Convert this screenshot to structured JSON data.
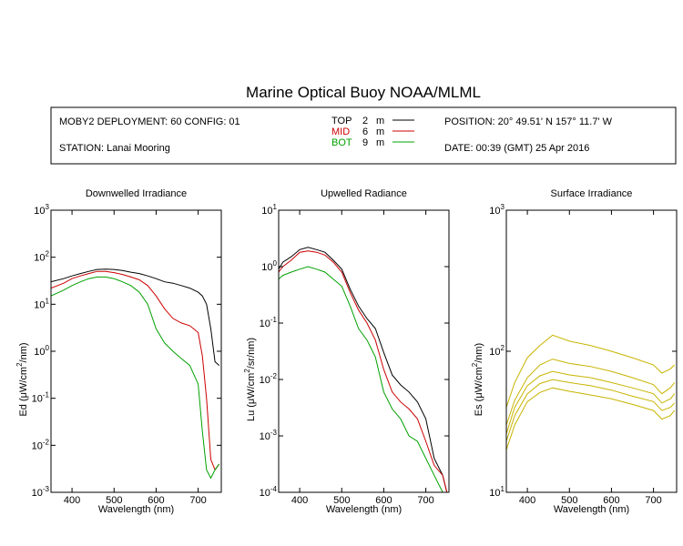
{
  "title": "Marine Optical Buoy NOAA/MLML",
  "info": {
    "deployment": "MOBY2 DEPLOYMENT: 60 CONFIG: 01",
    "station": "STATION: Lanai Mooring",
    "position": "POSITION: 20° 49.51' N   157° 11.7' W",
    "date": "DATE: 00:39 (GMT) 25 Apr 2016"
  },
  "legend": [
    {
      "label": "TOP",
      "depth": "2",
      "unit": "m",
      "color": "#000000"
    },
    {
      "label": "MID",
      "depth": "6",
      "unit": "m",
      "color": "#cc0000"
    },
    {
      "label": "BOT",
      "depth": "9",
      "unit": "m",
      "color": "#00a000"
    }
  ],
  "colors": {
    "top": "#000000",
    "mid": "#cc0000",
    "bot": "#00a000",
    "surface": "#c8b400"
  },
  "chart_data": [
    {
      "type": "line",
      "title": "Downwelled Irradiance",
      "xlabel": "Wavelength (nm)",
      "ylabel_main": "Ed",
      "ylabel_unit": "(μW/cm²/nm)",
      "xlim": [
        350,
        755
      ],
      "ylim": [
        0.001,
        1000
      ],
      "yscale": "log",
      "xticks": [
        "400",
        "500",
        "600",
        "700"
      ],
      "yticks": [
        {
          "base": "10",
          "exp": "-3"
        },
        {
          "base": "10",
          "exp": "-2"
        },
        {
          "base": "10",
          "exp": "-1"
        },
        {
          "base": "10",
          "exp": "0"
        },
        {
          "base": "10",
          "exp": "1"
        },
        {
          "base": "10",
          "exp": "2"
        },
        {
          "base": "10",
          "exp": "3"
        }
      ],
      "series": [
        {
          "name": "TOP",
          "x": [
            350,
            380,
            400,
            420,
            440,
            460,
            480,
            500,
            520,
            540,
            560,
            580,
            600,
            620,
            640,
            660,
            680,
            700,
            710,
            720,
            730,
            740,
            750
          ],
          "y": [
            30,
            35,
            40,
            45,
            50,
            55,
            56,
            55,
            52,
            48,
            45,
            40,
            35,
            30,
            28,
            25,
            22,
            18,
            15,
            10,
            3,
            0.6,
            0.5
          ]
        },
        {
          "name": "MID",
          "x": [
            350,
            380,
            400,
            420,
            440,
            460,
            480,
            500,
            520,
            540,
            560,
            580,
            600,
            620,
            640,
            660,
            680,
            700,
            710,
            720,
            730,
            740,
            750
          ],
          "y": [
            22,
            28,
            35,
            40,
            45,
            50,
            50,
            47,
            43,
            38,
            33,
            25,
            15,
            8,
            5,
            4,
            3.5,
            2.5,
            0.8,
            0.1,
            0.005,
            0.003,
            0.004
          ]
        },
        {
          "name": "BOT",
          "x": [
            350,
            380,
            400,
            420,
            440,
            460,
            480,
            500,
            520,
            540,
            560,
            580,
            600,
            620,
            640,
            660,
            680,
            700,
            710,
            720,
            730,
            740,
            750
          ],
          "y": [
            15,
            20,
            25,
            30,
            35,
            38,
            38,
            35,
            30,
            25,
            18,
            10,
            3,
            1.5,
            1,
            0.7,
            0.5,
            0.2,
            0.02,
            0.003,
            0.002,
            0.003,
            0.004
          ]
        }
      ]
    },
    {
      "type": "line",
      "title": "Upwelled Radiance",
      "xlabel": "Wavelength (nm)",
      "ylabel_main": "Lu",
      "ylabel_unit": "(μW/cm²/sr/nm)",
      "xlim": [
        350,
        755
      ],
      "ylim": [
        0.0001,
        10
      ],
      "yscale": "log",
      "xticks": [
        "400",
        "500",
        "600",
        "700"
      ],
      "yticks": [
        {
          "base": "10",
          "exp": "-4"
        },
        {
          "base": "10",
          "exp": "-3"
        },
        {
          "base": "10",
          "exp": "-2"
        },
        {
          "base": "10",
          "exp": "-1"
        },
        {
          "base": "10",
          "exp": "0"
        },
        {
          "base": "10",
          "exp": "1"
        }
      ],
      "series": [
        {
          "name": "TOP",
          "x": [
            350,
            360,
            380,
            400,
            420,
            440,
            460,
            480,
            500,
            520,
            540,
            560,
            580,
            600,
            620,
            640,
            660,
            680,
            700,
            720,
            740,
            750
          ],
          "y": [
            0.9,
            1.2,
            1.5,
            2,
            2.2,
            2,
            1.8,
            1.3,
            0.9,
            0.4,
            0.2,
            0.12,
            0.08,
            0.03,
            0.012,
            0.008,
            0.006,
            0.004,
            0.002,
            0.0004,
            0.0002,
            0.0001
          ]
        },
        {
          "name": "MID",
          "x": [
            350,
            360,
            380,
            400,
            420,
            440,
            460,
            480,
            500,
            520,
            540,
            560,
            580,
            600,
            620,
            640,
            660,
            680,
            700,
            720,
            740,
            750
          ],
          "y": [
            0.8,
            1,
            1.3,
            1.8,
            1.9,
            1.8,
            1.6,
            1.2,
            0.8,
            0.35,
            0.17,
            0.1,
            0.05,
            0.015,
            0.006,
            0.004,
            0.003,
            0.002,
            0.0008,
            0.0003,
            0.0002,
            0.0001
          ]
        },
        {
          "name": "BOT",
          "x": [
            350,
            360,
            380,
            400,
            420,
            440,
            460,
            480,
            500,
            520,
            540,
            560,
            580,
            600,
            620,
            640,
            660,
            680,
            700,
            720,
            740,
            750
          ],
          "y": [
            0.6,
            0.7,
            0.8,
            0.9,
            1,
            0.9,
            0.8,
            0.6,
            0.45,
            0.2,
            0.08,
            0.05,
            0.025,
            0.006,
            0.003,
            0.002,
            0.001,
            0.0008,
            0.0004,
            0.0002,
            0.0001,
            0.0001
          ]
        }
      ]
    },
    {
      "type": "line",
      "title": "Surface Irradiance",
      "xlabel": "Wavelength (nm)",
      "ylabel_main": "Es",
      "ylabel_unit": "(μW/cm²/nm)",
      "xlim": [
        350,
        755
      ],
      "ylim": [
        10,
        1000
      ],
      "yscale": "log",
      "xticks": [
        "400",
        "500",
        "600",
        "700"
      ],
      "yticks": [
        {
          "base": "10",
          "exp": "1"
        },
        {
          "base": "10",
          "exp": "2"
        },
        {
          "base": "10",
          "exp": "3"
        }
      ],
      "series": [
        {
          "x": [
            350,
            370,
            400,
            430,
            460,
            500,
            550,
            600,
            650,
            700,
            720,
            740,
            750
          ],
          "y": [
            40,
            60,
            90,
            110,
            130,
            118,
            110,
            100,
            90,
            80,
            70,
            75,
            80
          ]
        },
        {
          "x": [
            350,
            370,
            400,
            430,
            460,
            500,
            550,
            600,
            650,
            700,
            720,
            740,
            750
          ],
          "y": [
            30,
            45,
            65,
            80,
            88,
            82,
            78,
            72,
            65,
            58,
            50,
            55,
            60
          ]
        },
        {
          "x": [
            350,
            370,
            400,
            430,
            460,
            500,
            550,
            600,
            650,
            700,
            720,
            740,
            750
          ],
          "y": [
            26,
            40,
            57,
            67,
            72,
            68,
            65,
            60,
            55,
            50,
            43,
            46,
            50
          ]
        },
        {
          "x": [
            350,
            370,
            400,
            430,
            460,
            500,
            550,
            600,
            650,
            700,
            720,
            740,
            750
          ],
          "y": [
            23,
            35,
            50,
            59,
            63,
            60,
            57,
            53,
            48,
            44,
            38,
            40,
            43
          ]
        },
        {
          "x": [
            350,
            370,
            400,
            430,
            460,
            500,
            550,
            600,
            650,
            700,
            720,
            740,
            750
          ],
          "y": [
            20,
            30,
            44,
            51,
            55,
            52,
            49,
            46,
            42,
            38,
            33,
            35,
            38
          ]
        }
      ]
    }
  ]
}
